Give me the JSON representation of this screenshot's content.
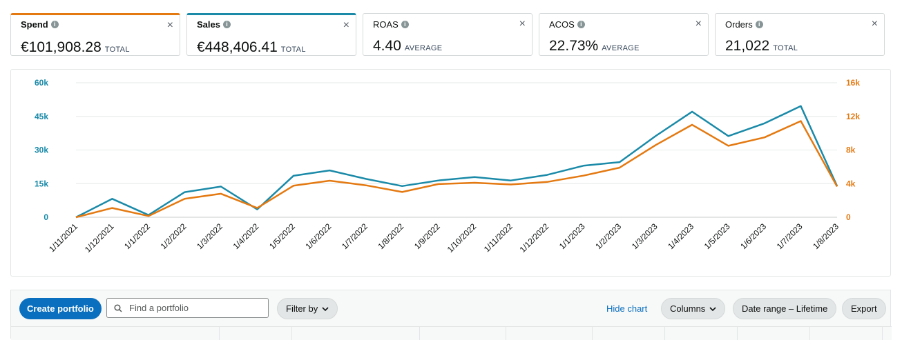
{
  "metrics": [
    {
      "label": "Spend",
      "value": "€101,908.28",
      "unit": "TOTAL",
      "selected": true,
      "color": "#e47911"
    },
    {
      "label": "Sales",
      "value": "€448,406.41",
      "unit": "TOTAL",
      "selected": true,
      "color": "#1a8aa8"
    },
    {
      "label": "ROAS",
      "value": "4.40",
      "unit": "AVERAGE",
      "selected": false
    },
    {
      "label": "ACOS",
      "value": "22.73%",
      "unit": "AVERAGE",
      "selected": false
    },
    {
      "label": "Orders",
      "value": "21,022",
      "unit": "TOTAL",
      "selected": false
    }
  ],
  "close_glyph": "×",
  "info_glyph": "i",
  "chart_data": {
    "type": "line",
    "categories": [
      "1/11/2021",
      "1/12/2021",
      "1/1/2022",
      "1/2/2022",
      "1/3/2022",
      "1/4/2022",
      "1/5/2022",
      "1/6/2022",
      "1/7/2022",
      "1/8/2022",
      "1/9/2022",
      "1/10/2022",
      "1/11/2022",
      "1/12/2022",
      "1/1/2023",
      "1/2/2023",
      "1/3/2023",
      "1/4/2023",
      "1/5/2023",
      "1/6/2023",
      "1/7/2023",
      "1/8/2023"
    ],
    "y_left": {
      "ticks": [
        "0",
        "15k",
        "30k",
        "45k",
        "60k"
      ],
      "range": [
        0,
        60000
      ],
      "color": "#1a8aa8"
    },
    "y_right": {
      "ticks": [
        "0",
        "4k",
        "8k",
        "12k",
        "16k"
      ],
      "range": [
        0,
        16000
      ],
      "color": "#e47911"
    },
    "series": [
      {
        "key": "sales",
        "axis": "left",
        "color": "#1a8aa8",
        "values": [
          0,
          8200,
          1000,
          11200,
          13700,
          3500,
          18500,
          20900,
          17100,
          13900,
          16400,
          17900,
          16400,
          18900,
          23000,
          24600,
          36300,
          47100,
          36200,
          41900,
          49600,
          13900
        ]
      },
      {
        "key": "spend",
        "axis": "right",
        "color": "#e47911",
        "values": [
          0,
          1100,
          150,
          2200,
          2800,
          1100,
          3750,
          4350,
          3800,
          3000,
          3950,
          4100,
          3900,
          4200,
          4950,
          5900,
          8600,
          11000,
          8500,
          9500,
          11450,
          3650
        ]
      }
    ],
    "grid": true
  },
  "toolbar": {
    "create_label": "Create portfolio",
    "search_placeholder": "Find a portfolio",
    "filter_label": "Filter by",
    "hide_chart_label": "Hide chart",
    "columns_label": "Columns",
    "date_range_label": "Date range – Lifetime",
    "export_label": "Export"
  }
}
